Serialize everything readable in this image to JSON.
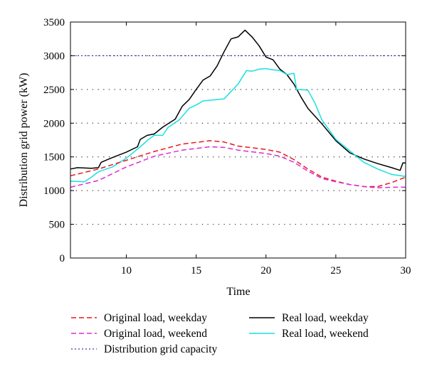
{
  "chart_data": {
    "type": "line",
    "xlabel": "Time",
    "ylabel": "Distribution grid power (kW)",
    "xlim": [
      6,
      30
    ],
    "ylim": [
      0,
      3500
    ],
    "xticks": [
      10,
      15,
      20,
      25,
      30
    ],
    "yticks": [
      0,
      500,
      1000,
      1500,
      2000,
      2500,
      3000,
      3500
    ],
    "grid": "horizontal dotted",
    "legend_position": "bottom",
    "series": [
      {
        "name": "Original load, weekday",
        "color": "#e8191c",
        "dash": "dashed",
        "points": [
          [
            6,
            1220
          ],
          [
            8,
            1320
          ],
          [
            10,
            1450
          ],
          [
            12,
            1580
          ],
          [
            14,
            1690
          ],
          [
            16,
            1740
          ],
          [
            17,
            1720
          ],
          [
            18,
            1660
          ],
          [
            20,
            1610
          ],
          [
            21,
            1570
          ],
          [
            22,
            1460
          ],
          [
            23,
            1320
          ],
          [
            24,
            1200
          ],
          [
            25,
            1140
          ],
          [
            26,
            1090
          ],
          [
            27,
            1060
          ],
          [
            28,
            1060
          ],
          [
            29,
            1120
          ],
          [
            30,
            1200
          ]
        ]
      },
      {
        "name": "Original load, weekend",
        "color": "#dd2ad8",
        "dash": "dashed",
        "points": [
          [
            6,
            1050
          ],
          [
            8,
            1150
          ],
          [
            10,
            1350
          ],
          [
            12,
            1510
          ],
          [
            14,
            1600
          ],
          [
            16,
            1650
          ],
          [
            17,
            1640
          ],
          [
            18,
            1600
          ],
          [
            20,
            1550
          ],
          [
            21,
            1510
          ],
          [
            22,
            1420
          ],
          [
            23,
            1290
          ],
          [
            24,
            1180
          ],
          [
            25,
            1130
          ],
          [
            26,
            1090
          ],
          [
            27,
            1060
          ],
          [
            28,
            1040
          ],
          [
            29,
            1050
          ],
          [
            30,
            1050
          ]
        ]
      },
      {
        "name": "Real load, weekday",
        "color": "#000000",
        "dash": "solid",
        "points": [
          [
            6,
            1320
          ],
          [
            6.5,
            1340
          ],
          [
            7.5,
            1330
          ],
          [
            8,
            1340
          ],
          [
            8.2,
            1420
          ],
          [
            9,
            1490
          ],
          [
            10,
            1570
          ],
          [
            10.8,
            1650
          ],
          [
            11,
            1760
          ],
          [
            11.5,
            1820
          ],
          [
            12,
            1840
          ],
          [
            12.6,
            1940
          ],
          [
            13.5,
            2060
          ],
          [
            14,
            2250
          ],
          [
            14.5,
            2350
          ],
          [
            15,
            2500
          ],
          [
            15.5,
            2640
          ],
          [
            16,
            2700
          ],
          [
            16.5,
            2850
          ],
          [
            17,
            3060
          ],
          [
            17.5,
            3250
          ],
          [
            18,
            3280
          ],
          [
            18.5,
            3380
          ],
          [
            19,
            3280
          ],
          [
            19.5,
            3150
          ],
          [
            20,
            2980
          ],
          [
            20.5,
            2940
          ],
          [
            21,
            2800
          ],
          [
            21.5,
            2720
          ],
          [
            22,
            2580
          ],
          [
            22.5,
            2390
          ],
          [
            23,
            2220
          ],
          [
            24,
            1990
          ],
          [
            25,
            1740
          ],
          [
            26,
            1560
          ],
          [
            27,
            1470
          ],
          [
            28,
            1400
          ],
          [
            29,
            1340
          ],
          [
            29.6,
            1300
          ],
          [
            29.8,
            1410
          ],
          [
            30,
            1410
          ]
        ]
      },
      {
        "name": "Real load, weekend",
        "color": "#19e0e0",
        "dash": "solid",
        "points": [
          [
            6,
            1140
          ],
          [
            7,
            1130
          ],
          [
            7.5,
            1200
          ],
          [
            8,
            1280
          ],
          [
            9,
            1350
          ],
          [
            10,
            1480
          ],
          [
            11,
            1650
          ],
          [
            11.6,
            1760
          ],
          [
            12,
            1820
          ],
          [
            12.6,
            1820
          ],
          [
            13,
            1940
          ],
          [
            13.8,
            2050
          ],
          [
            14.5,
            2220
          ],
          [
            15,
            2270
          ],
          [
            15.5,
            2330
          ],
          [
            16,
            2340
          ],
          [
            17,
            2360
          ],
          [
            17.5,
            2470
          ],
          [
            18,
            2580
          ],
          [
            18.6,
            2780
          ],
          [
            19,
            2770
          ],
          [
            19.5,
            2800
          ],
          [
            20,
            2810
          ],
          [
            20.5,
            2790
          ],
          [
            21,
            2780
          ],
          [
            21.5,
            2720
          ],
          [
            22,
            2740
          ],
          [
            22.2,
            2500
          ],
          [
            23,
            2490
          ],
          [
            23.5,
            2300
          ],
          [
            24,
            2050
          ],
          [
            25,
            1760
          ],
          [
            26,
            1590
          ],
          [
            27,
            1420
          ],
          [
            28,
            1320
          ],
          [
            29,
            1240
          ],
          [
            30,
            1210
          ]
        ]
      },
      {
        "name": "Distribution grid capacity",
        "color": "#3a3aa0",
        "dash": "dotted",
        "points": [
          [
            6,
            3000
          ],
          [
            30,
            3000
          ]
        ]
      }
    ]
  }
}
